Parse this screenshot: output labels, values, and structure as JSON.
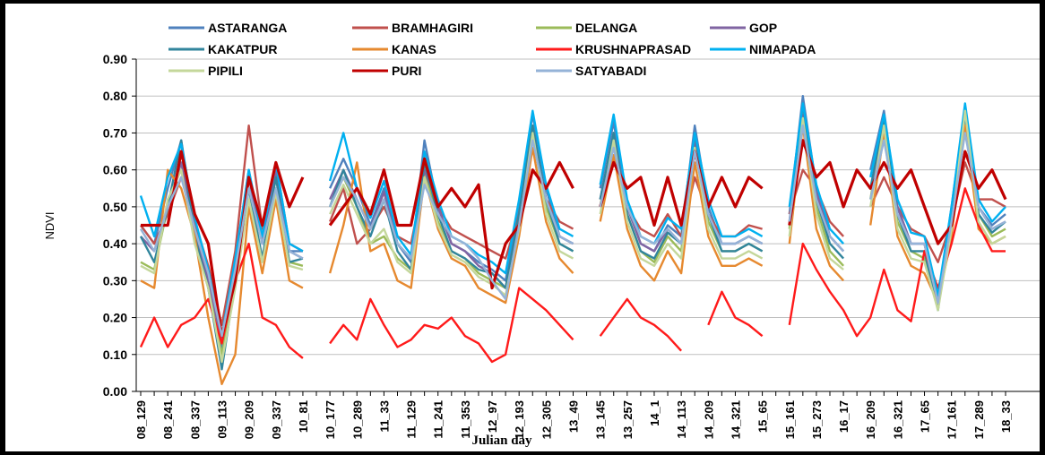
{
  "chart_data": {
    "type": "line",
    "x_label": "Julian day",
    "y_label": "NDVI",
    "categories": [
      "08_129",
      null,
      "08_241",
      null,
      "08_337",
      null,
      "09_113",
      null,
      "09_209",
      null,
      "09_337",
      null,
      "10_81",
      null,
      "10_177",
      null,
      "10_289",
      null,
      "11_33",
      null,
      "11_129",
      null,
      "11_241",
      null,
      "11_353",
      null,
      "12_97",
      null,
      "12_193",
      null,
      "12_305",
      null,
      "13_49",
      null,
      "13_145",
      null,
      "13_257",
      null,
      "14_1",
      null,
      "14_113",
      null,
      "14_209",
      null,
      "14_321",
      null,
      "15_65",
      null,
      "15_161",
      null,
      "15_273",
      null,
      "16_17",
      null,
      "16_209",
      null,
      "16_321",
      null,
      "17_65",
      null,
      "17_161",
      null,
      "17_289",
      null,
      "18_33"
    ],
    "ylim": [
      0,
      0.9
    ],
    "yticks": [
      {
        "value": 0,
        "label": "0.00"
      },
      {
        "value": 0.1,
        "label": "0.10"
      },
      {
        "value": 0.2,
        "label": "0.20"
      },
      {
        "value": 0.3,
        "label": "0.30"
      },
      {
        "value": 0.4,
        "label": "0.40"
      },
      {
        "value": 0.5,
        "label": "0.50"
      },
      {
        "value": 0.6,
        "label": "0.60"
      },
      {
        "value": 0.7,
        "label": "0.70"
      },
      {
        "value": 0.8,
        "label": "0.80"
      },
      {
        "value": 0.9,
        "label": "0.90"
      }
    ],
    "grid": true,
    "legend": "top",
    "series": [
      {
        "name": "ASTARANGA",
        "color": "#4f81bd",
        "values": [
          0.45,
          0.4,
          0.55,
          0.68,
          0.45,
          0.3,
          0.12,
          0.35,
          0.6,
          0.4,
          0.6,
          0.38,
          0.38,
          null,
          0.55,
          0.63,
          0.55,
          0.45,
          0.55,
          0.4,
          0.35,
          0.68,
          0.5,
          0.4,
          0.38,
          0.35,
          0.33,
          0.3,
          0.5,
          0.75,
          0.55,
          0.42,
          0.4,
          null,
          0.55,
          0.73,
          0.5,
          0.4,
          0.38,
          0.45,
          0.42,
          0.72,
          0.5,
          0.4,
          0.4,
          0.42,
          0.4,
          null,
          0.48,
          0.8,
          0.55,
          0.42,
          0.38,
          null,
          0.6,
          0.76,
          0.5,
          0.4,
          0.4,
          0.24,
          0.5,
          0.77,
          0.5,
          0.45,
          0.48
        ]
      },
      {
        "name": "BRAMHAGIRI",
        "color": "#c0504d",
        "values": [
          0.45,
          0.4,
          0.48,
          0.58,
          0.46,
          0.34,
          0.18,
          0.38,
          0.72,
          0.44,
          0.62,
          0.4,
          0.38,
          null,
          0.46,
          0.55,
          0.4,
          0.44,
          0.5,
          0.42,
          0.4,
          0.58,
          0.5,
          0.44,
          0.42,
          0.4,
          0.38,
          0.36,
          0.48,
          0.7,
          0.52,
          0.46,
          0.44,
          null,
          0.52,
          0.64,
          0.5,
          0.44,
          0.42,
          0.48,
          0.42,
          0.58,
          0.48,
          0.42,
          0.42,
          0.45,
          0.44,
          null,
          0.48,
          0.6,
          0.55,
          0.46,
          0.42,
          null,
          0.5,
          0.58,
          0.5,
          0.44,
          0.42,
          0.35,
          0.46,
          0.62,
          0.52,
          0.52,
          0.5
        ]
      },
      {
        "name": "DELANGA",
        "color": "#9bbb59",
        "values": [
          0.35,
          0.33,
          0.5,
          0.62,
          0.42,
          0.28,
          0.1,
          0.3,
          0.55,
          0.36,
          0.55,
          0.35,
          0.34,
          null,
          0.5,
          0.58,
          0.5,
          0.4,
          0.42,
          0.36,
          0.33,
          0.6,
          0.46,
          0.38,
          0.36,
          0.32,
          0.3,
          0.28,
          0.45,
          0.72,
          0.5,
          0.4,
          0.38,
          null,
          0.5,
          0.7,
          0.48,
          0.38,
          0.35,
          0.42,
          0.38,
          0.68,
          0.46,
          0.38,
          0.38,
          0.4,
          0.38,
          null,
          0.44,
          0.76,
          0.5,
          0.38,
          0.34,
          null,
          0.52,
          0.74,
          0.46,
          0.38,
          0.36,
          0.23,
          0.46,
          0.74,
          0.48,
          0.42,
          0.44
        ]
      },
      {
        "name": "GOP",
        "color": "#8064a2",
        "values": [
          0.42,
          0.38,
          0.5,
          0.62,
          0.44,
          0.3,
          0.14,
          0.34,
          0.58,
          0.4,
          0.6,
          0.38,
          0.36,
          null,
          0.52,
          0.6,
          0.52,
          0.44,
          0.54,
          0.4,
          0.36,
          0.6,
          0.5,
          0.4,
          0.38,
          0.34,
          0.32,
          0.28,
          0.48,
          0.7,
          0.52,
          0.42,
          0.4,
          null,
          0.52,
          0.7,
          0.5,
          0.4,
          0.38,
          0.44,
          0.4,
          0.68,
          0.48,
          0.4,
          0.4,
          0.42,
          0.4,
          null,
          0.46,
          0.75,
          0.54,
          0.42,
          0.38,
          null,
          0.55,
          0.7,
          0.5,
          0.4,
          0.4,
          0.24,
          0.48,
          0.72,
          0.5,
          0.44,
          0.46
        ]
      },
      {
        "name": "KAKATPUR",
        "color": "#31859c",
        "values": [
          0.42,
          0.35,
          0.5,
          0.68,
          0.42,
          0.28,
          0.06,
          0.3,
          0.55,
          0.36,
          0.58,
          0.35,
          0.36,
          null,
          0.5,
          0.6,
          0.5,
          0.42,
          0.52,
          0.38,
          0.33,
          0.62,
          0.48,
          0.38,
          0.36,
          0.33,
          0.32,
          0.28,
          0.48,
          0.72,
          0.52,
          0.4,
          0.38,
          null,
          0.52,
          0.7,
          0.48,
          0.38,
          0.36,
          0.43,
          0.4,
          0.7,
          0.48,
          0.38,
          0.38,
          0.4,
          0.38,
          null,
          0.45,
          0.78,
          0.52,
          0.4,
          0.36,
          null,
          0.55,
          0.74,
          0.48,
          0.38,
          0.38,
          0.22,
          0.48,
          0.75,
          0.48,
          0.43,
          0.46
        ]
      },
      {
        "name": "KANAS",
        "color": "#e6892f",
        "values": [
          0.3,
          0.28,
          0.6,
          0.55,
          0.42,
          0.2,
          0.02,
          0.1,
          0.5,
          0.32,
          0.52,
          0.3,
          0.28,
          null,
          0.32,
          0.45,
          0.62,
          0.38,
          0.4,
          0.3,
          0.28,
          0.58,
          0.44,
          0.36,
          0.34,
          0.28,
          0.26,
          0.24,
          0.42,
          0.66,
          0.46,
          0.36,
          0.32,
          null,
          0.46,
          0.64,
          0.44,
          0.34,
          0.3,
          0.38,
          0.32,
          0.62,
          0.42,
          0.34,
          0.34,
          0.36,
          0.34,
          null,
          0.4,
          0.72,
          0.44,
          0.34,
          0.3,
          null,
          0.45,
          0.7,
          0.42,
          0.34,
          0.32,
          0.24,
          0.42,
          0.72,
          0.44,
          0.4,
          0.42
        ]
      },
      {
        "name": "KRUSHNAPRASAD",
        "color": "#ff1a1a",
        "values": [
          0.12,
          0.2,
          0.12,
          0.18,
          0.2,
          0.25,
          0.13,
          0.3,
          0.4,
          0.2,
          0.18,
          0.12,
          0.09,
          null,
          0.13,
          0.18,
          0.14,
          0.25,
          0.18,
          0.12,
          0.14,
          0.18,
          0.17,
          0.2,
          0.15,
          0.13,
          0.08,
          0.1,
          0.28,
          0.25,
          0.22,
          0.18,
          0.14,
          null,
          0.15,
          0.2,
          0.25,
          0.2,
          0.18,
          0.15,
          0.11,
          null,
          0.18,
          0.27,
          0.2,
          0.18,
          0.15,
          null,
          0.18,
          0.4,
          0.33,
          0.27,
          0.22,
          0.15,
          0.2,
          0.33,
          0.22,
          0.19,
          0.38,
          0.28,
          0.4,
          0.55,
          0.45,
          0.38,
          0.38
        ]
      },
      {
        "name": "NIMAPADA",
        "color": "#00b0f0",
        "values": [
          0.53,
          0.42,
          0.58,
          0.67,
          0.47,
          0.33,
          0.15,
          0.36,
          0.6,
          0.42,
          0.62,
          0.4,
          0.38,
          null,
          0.57,
          0.7,
          0.55,
          0.47,
          0.57,
          0.42,
          0.37,
          0.65,
          0.52,
          0.42,
          0.4,
          0.37,
          0.35,
          0.32,
          0.52,
          0.76,
          0.56,
          0.44,
          0.42,
          null,
          0.56,
          0.75,
          0.52,
          0.42,
          0.4,
          0.47,
          0.44,
          0.7,
          0.52,
          0.42,
          0.42,
          0.44,
          0.42,
          null,
          0.5,
          0.78,
          0.56,
          0.44,
          0.4,
          null,
          0.58,
          0.75,
          0.52,
          0.43,
          0.42,
          0.26,
          0.5,
          0.78,
          0.52,
          0.46,
          0.5
        ]
      },
      {
        "name": "PIPILI",
        "color": "#c4d79b",
        "values": [
          0.34,
          0.32,
          0.52,
          0.6,
          0.4,
          0.28,
          0.08,
          0.28,
          0.52,
          0.35,
          0.54,
          0.34,
          0.33,
          null,
          0.48,
          0.56,
          0.48,
          0.4,
          0.44,
          0.35,
          0.32,
          0.58,
          0.45,
          0.37,
          0.35,
          0.31,
          0.29,
          0.26,
          0.44,
          0.7,
          0.48,
          0.38,
          0.36,
          null,
          0.48,
          0.68,
          0.46,
          0.36,
          0.34,
          0.4,
          0.36,
          0.66,
          0.44,
          0.36,
          0.36,
          0.38,
          0.36,
          null,
          0.42,
          0.74,
          0.48,
          0.36,
          0.33,
          null,
          0.5,
          0.72,
          0.44,
          0.36,
          0.35,
          0.22,
          0.44,
          0.76,
          0.46,
          0.4,
          0.42
        ]
      },
      {
        "name": "PURI",
        "color": "#c00000",
        "values": [
          0.45,
          0.45,
          0.45,
          0.65,
          0.48,
          0.4,
          0.15,
          0.3,
          0.58,
          0.45,
          0.62,
          0.5,
          0.58,
          null,
          0.45,
          0.5,
          0.55,
          0.48,
          0.6,
          0.45,
          0.45,
          0.63,
          0.5,
          0.55,
          0.5,
          0.56,
          0.28,
          0.4,
          0.45,
          0.6,
          0.55,
          0.62,
          0.55,
          null,
          0.5,
          0.62,
          0.55,
          0.58,
          0.45,
          0.58,
          0.45,
          0.65,
          0.5,
          0.58,
          0.5,
          0.58,
          0.55,
          null,
          0.45,
          0.68,
          0.58,
          0.62,
          0.5,
          0.6,
          0.55,
          0.62,
          0.55,
          0.6,
          0.5,
          0.4,
          0.45,
          0.65,
          0.55,
          0.6,
          0.52
        ]
      },
      {
        "name": "SATYABADI",
        "color": "#95b3d7",
        "values": [
          0.44,
          0.38,
          0.5,
          0.58,
          0.44,
          0.32,
          0.15,
          0.33,
          0.55,
          0.4,
          0.55,
          0.38,
          0.36,
          null,
          0.5,
          0.58,
          0.52,
          0.44,
          0.52,
          0.4,
          0.36,
          0.56,
          0.48,
          0.42,
          0.4,
          0.36,
          0.3,
          0.25,
          0.45,
          0.68,
          0.52,
          0.42,
          0.4,
          null,
          0.5,
          0.66,
          0.5,
          0.42,
          0.4,
          0.44,
          0.4,
          0.65,
          0.48,
          0.4,
          0.4,
          0.42,
          0.4,
          null,
          0.46,
          0.72,
          0.52,
          0.42,
          0.38,
          null,
          0.52,
          0.68,
          0.48,
          0.4,
          0.4,
          0.24,
          0.46,
          0.7,
          0.5,
          0.44,
          0.46
        ]
      }
    ]
  }
}
